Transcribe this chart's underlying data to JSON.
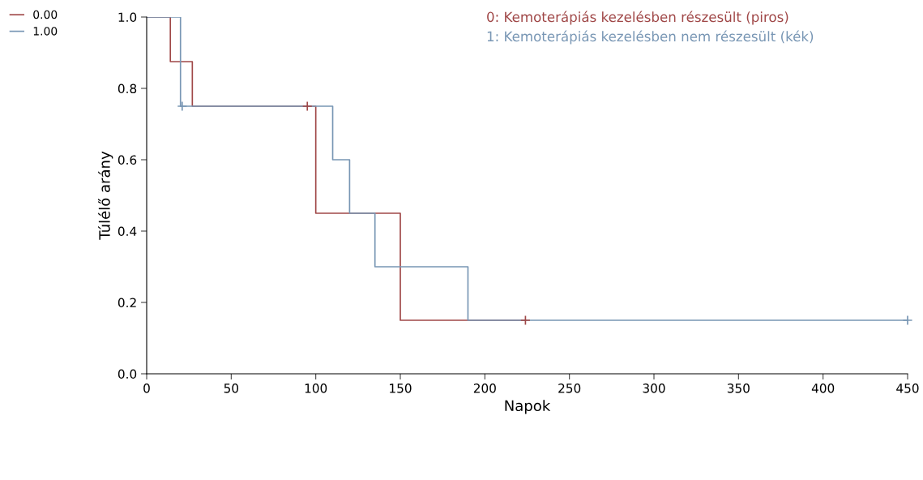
{
  "chart_data": {
    "type": "step",
    "xlabel": "Napok",
    "ylabel": "Túlélő arány",
    "annotations": [
      "0: Kemoterápiás kezelésben részesült (piros)",
      "1: Kemoterápiás kezelésben nem részesült (kék)"
    ],
    "series": [
      {
        "name": "0.00",
        "color": "#a04848",
        "x": [
          0,
          14,
          27,
          100,
          150,
          224
        ],
        "values": [
          1.0,
          0.875,
          0.75,
          0.45,
          0.15,
          0.15
        ]
      },
      {
        "name": "1.00",
        "color": "#7896b4",
        "x": [
          0,
          20,
          110,
          120,
          135,
          190,
          450
        ],
        "values": [
          1.0,
          0.75,
          0.6,
          0.45,
          0.3,
          0.15,
          0.15
        ]
      },
      {
        "type": "scatter",
        "marker": "cross",
        "color": "#a04848",
        "x": [
          95,
          224
        ],
        "values": [
          0.75,
          0.15
        ]
      },
      {
        "type": "scatter",
        "marker": "cross",
        "color": "#7896b4",
        "x": [
          21,
          450
        ],
        "values": [
          0.75,
          0.15
        ]
      }
    ],
    "xlim": [
      0,
      450
    ],
    "xticks": [
      0,
      50,
      100,
      150,
      200,
      250,
      300,
      350,
      400,
      450
    ],
    "ylim": [
      0,
      1.0
    ],
    "yticks": [
      {
        "value": 0,
        "label": "0.0"
      },
      {
        "value": 0.2,
        "label": "0.2"
      },
      {
        "value": 0.4,
        "label": "0.4"
      },
      {
        "value": 0.6,
        "label": "0.6"
      },
      {
        "value": 0.8,
        "label": "0.8"
      },
      {
        "value": 1.0,
        "label": "1.0"
      }
    ],
    "legend": "top left",
    "grid": false
  }
}
